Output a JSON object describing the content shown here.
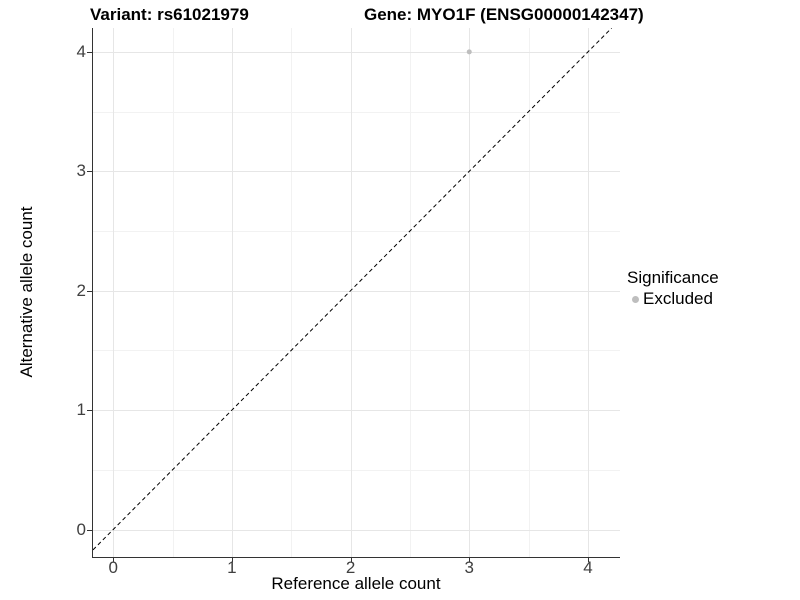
{
  "figure": {
    "title_left": "Variant: rs61021979",
    "title_right": "Gene: MYO1F (ENSG00000142347)"
  },
  "axes": {
    "x": {
      "title": "Reference allele count",
      "tick_labels": [
        "0",
        "1",
        "2",
        "3",
        "4"
      ]
    },
    "y": {
      "title": "Alternative allele count",
      "tick_labels": [
        "0",
        "1",
        "2",
        "3",
        "4"
      ]
    }
  },
  "legend": {
    "title": "Significance",
    "items": [
      {
        "label": "Excluded",
        "marker": "circle",
        "color": "#bebebe"
      }
    ]
  },
  "chart_data": {
    "type": "scatter",
    "title": "Variant: rs61021979 — Gene: MYO1F (ENSG00000142347)",
    "xlabel": "Reference allele count",
    "ylabel": "Alternative allele count",
    "xlim": [
      -0.17,
      4.27
    ],
    "ylim": [
      -0.23,
      4.2
    ],
    "x_ticks": [
      0,
      1,
      2,
      3,
      4
    ],
    "y_ticks": [
      0,
      1,
      2,
      3,
      4
    ],
    "x_minor_ticks": [
      0.5,
      1.5,
      2.5,
      3.5
    ],
    "y_minor_ticks": [
      0.5,
      1.5,
      2.5,
      3.5
    ],
    "grid": "major and minor, light gray on white",
    "legend_position": "right",
    "series": [
      {
        "name": "Excluded",
        "type": "scatter",
        "color": "#bebebe",
        "marker_radius": 2.5,
        "points": [
          [
            3,
            4
          ]
        ]
      }
    ],
    "annotations": [
      {
        "type": "abline",
        "slope": 1,
        "intercept": 0,
        "style": "dashed",
        "color": "#000000"
      }
    ]
  },
  "colors": {
    "background": "#ffffff",
    "grid_major": "#e6e6e6",
    "grid_minor": "#f2f2f2",
    "axis_line": "#333333",
    "tick_label": "#404040",
    "text": "#000000",
    "point": "#bebebe",
    "dashed_line": "#000000"
  }
}
